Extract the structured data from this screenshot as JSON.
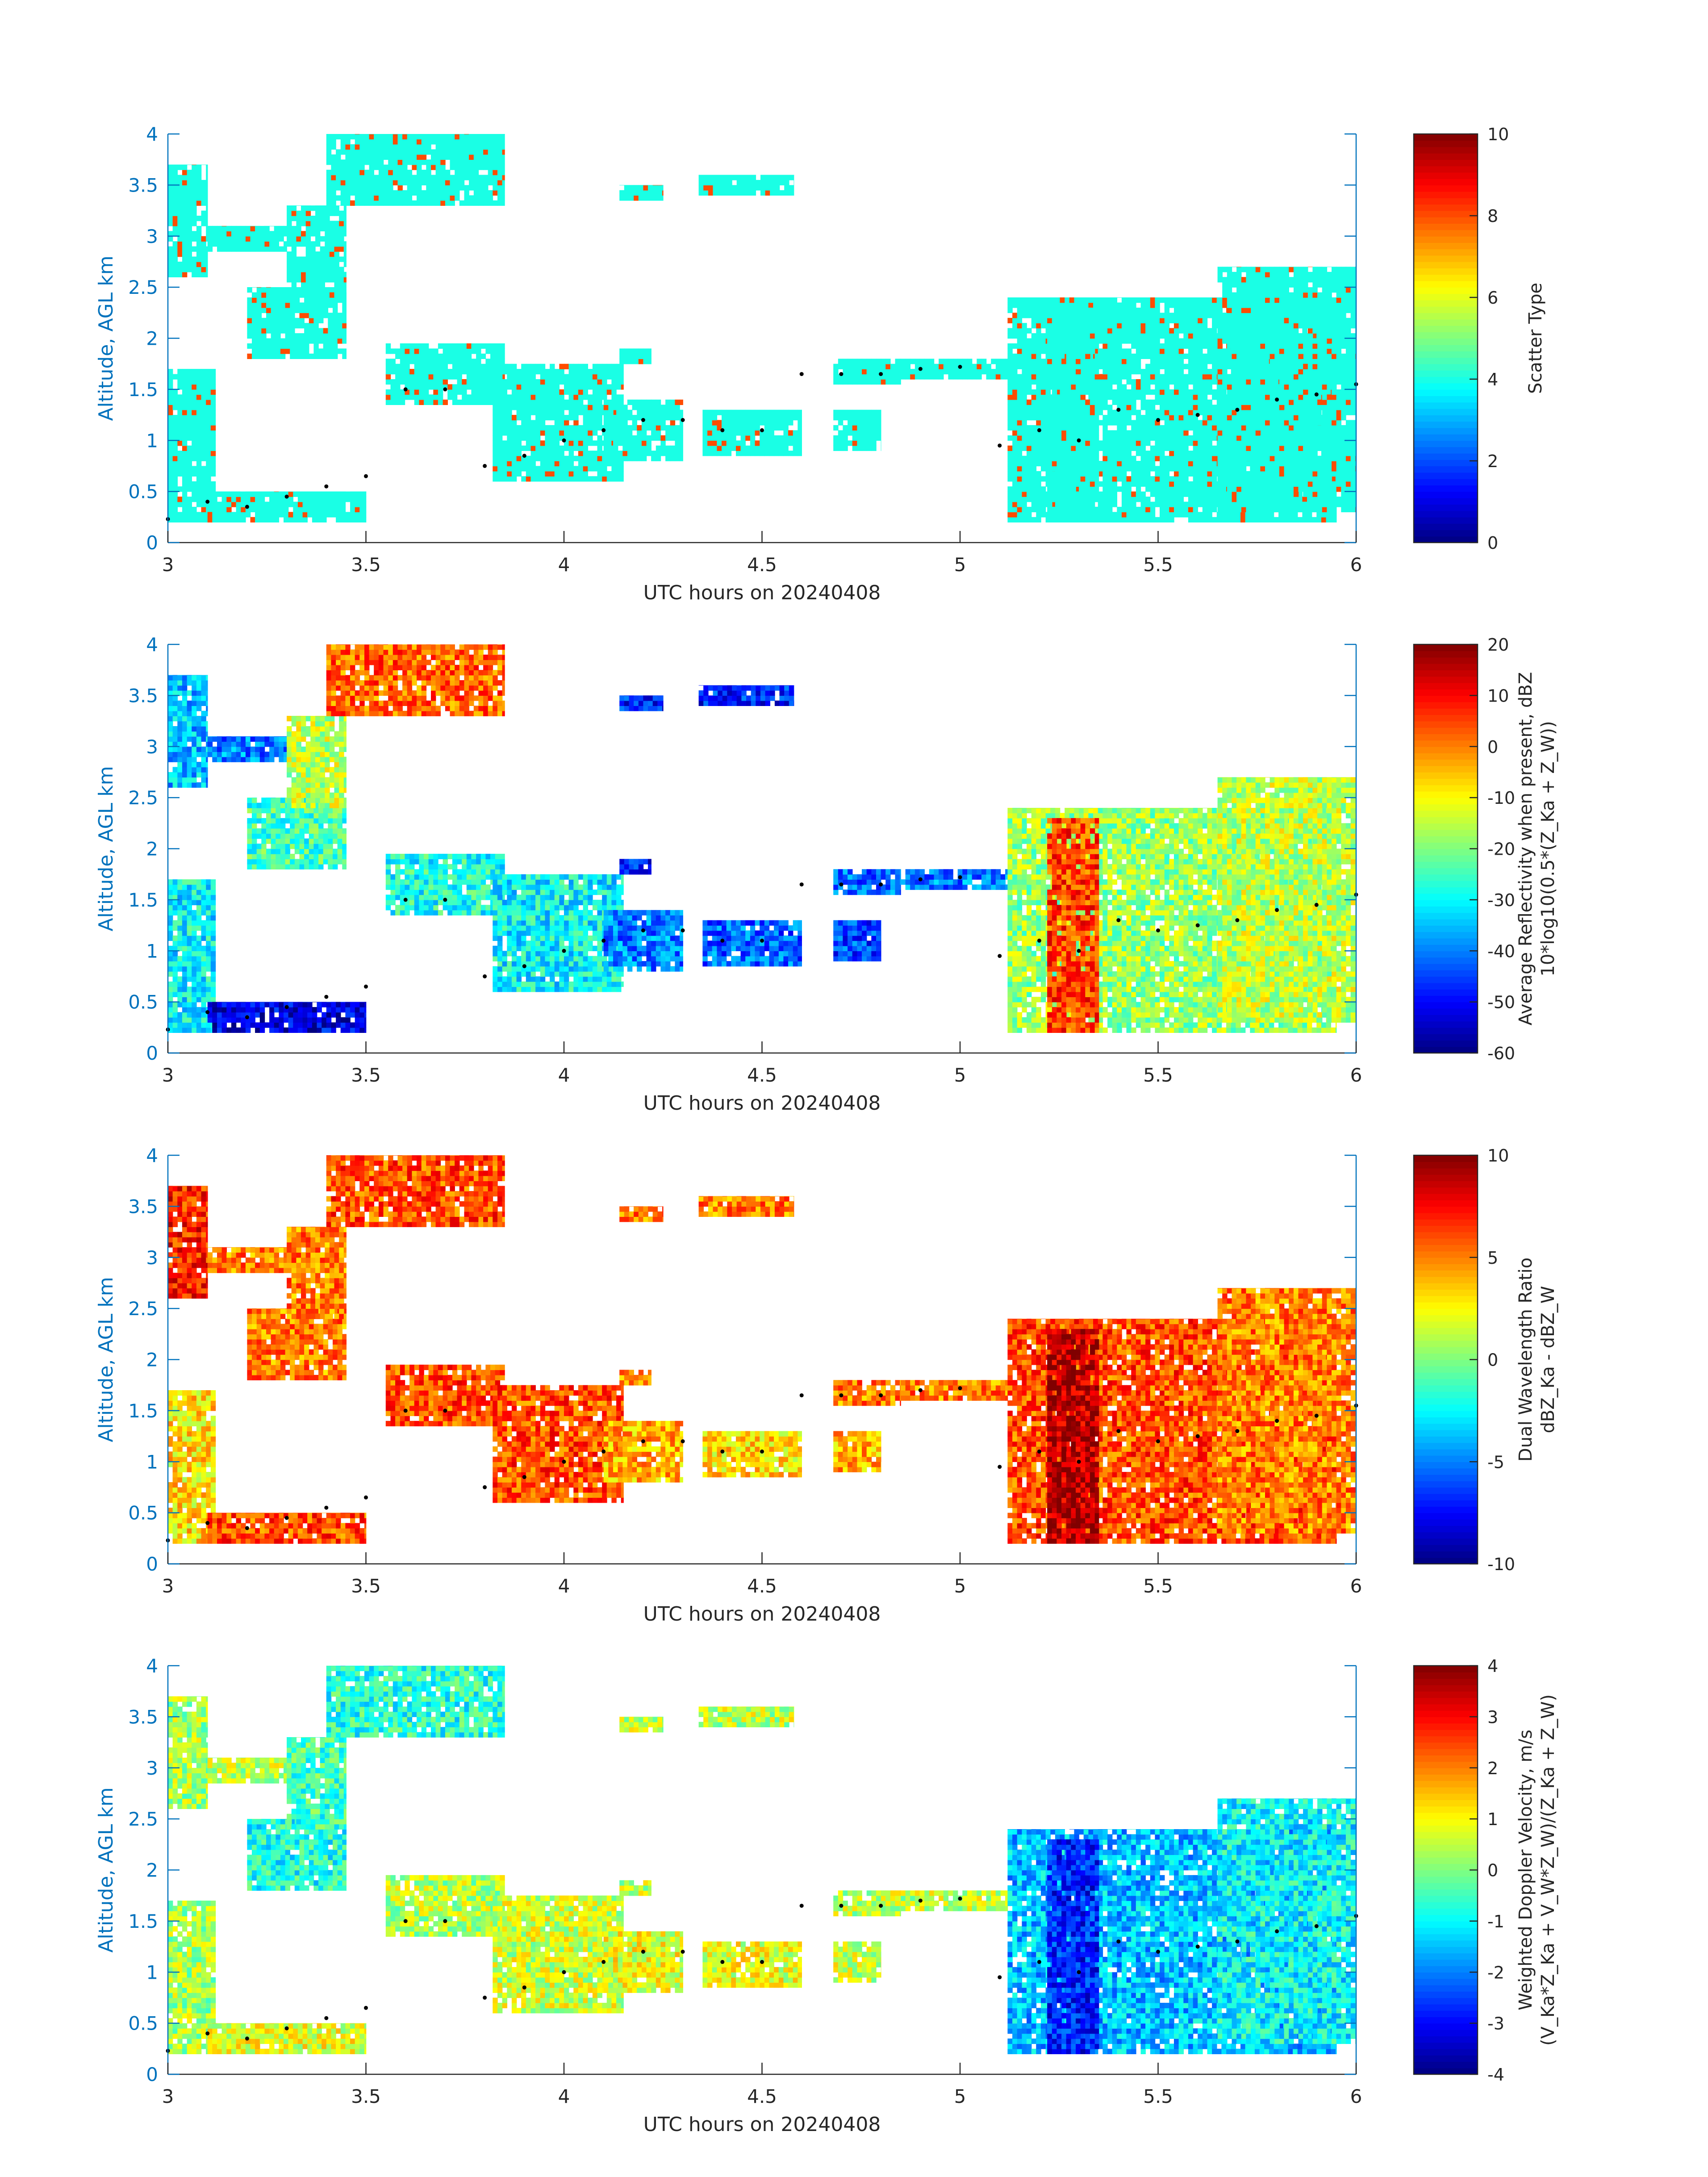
{
  "figure": {
    "panels": [
      {
        "id": "scatter-type",
        "ylabel": "Altitude, AGL km",
        "xlabel": "UTC hours on 20240408",
        "colorbar": {
          "label": [
            "Scatter Type"
          ],
          "min": 0,
          "max": 10,
          "ticks": [
            "0",
            "2",
            "4",
            "6",
            "8",
            "10"
          ]
        }
      },
      {
        "id": "reflectivity",
        "ylabel": "Altitude, AGL km",
        "xlabel": "UTC hours on 20240408",
        "colorbar": {
          "label": [
            "Average Reflectivity when present, dBZ",
            "10*log10(0.5*(Z_Ka + Z_W))"
          ],
          "min": -60,
          "max": 20,
          "ticks": [
            "-60",
            "-50",
            "-40",
            "-30",
            "-20",
            "-10",
            "0",
            "10",
            "20"
          ]
        }
      },
      {
        "id": "dwr",
        "ylabel": "Altitude, AGL km",
        "xlabel": "UTC hours on 20240408",
        "colorbar": {
          "label": [
            "Dual Wavelength Ratio",
            "dBZ_Ka - dBZ_W"
          ],
          "min": -10,
          "max": 10,
          "ticks": [
            "-10",
            "-5",
            "0",
            "5",
            "10"
          ]
        }
      },
      {
        "id": "doppler",
        "ylabel": "Altitude, AGL km",
        "xlabel": "UTC hours on 20240408",
        "colorbar": {
          "label": [
            "Weighted Doppler Velocity, m/s",
            "(V_Ka*Z_Ka + V_W*Z_W)/(Z_Ka + Z_W)"
          ],
          "min": -4,
          "max": 4,
          "ticks": [
            "-4",
            "-3",
            "-2",
            "-1",
            "0",
            "1",
            "2",
            "3",
            "4"
          ]
        }
      }
    ]
  },
  "chart_data": {
    "type": "heatmap",
    "xlim": [
      3,
      6
    ],
    "ylim": [
      0,
      4
    ],
    "xticks": [
      "3",
      "3.5",
      "4",
      "4.5",
      "5",
      "5.5",
      "6"
    ],
    "yticks": [
      "0",
      "0.5",
      "1",
      "1.5",
      "2",
      "2.5",
      "3",
      "3.5",
      "4"
    ],
    "colormap": "jet",
    "echo_regions": [
      {
        "x": [
          3.0,
          3.1
        ],
        "y": [
          2.6,
          3.7
        ],
        "type": 4,
        "dbz": -35,
        "dwr": 7,
        "vel": 0.3
      },
      {
        "x": [
          3.1,
          3.3
        ],
        "y": [
          2.85,
          3.1
        ],
        "type": 4,
        "dbz": -40,
        "dwr": 5,
        "vel": 0.5
      },
      {
        "x": [
          3.2,
          3.45
        ],
        "y": [
          1.8,
          2.5
        ],
        "type": 4,
        "dbz": -25,
        "dwr": 5,
        "vel": -0.8
      },
      {
        "x": [
          3.3,
          3.45
        ],
        "y": [
          2.4,
          3.3
        ],
        "type": 4,
        "dbz": -15,
        "dwr": 5,
        "vel": -0.5
      },
      {
        "x": [
          3.4,
          3.85
        ],
        "y": [
          3.3,
          4.0
        ],
        "type": 4,
        "dbz": 2,
        "dwr": 6,
        "vel": -0.7
      },
      {
        "x": [
          3.0,
          3.12
        ],
        "y": [
          0.2,
          1.7
        ],
        "type": 4,
        "dbz": -30,
        "dwr": 3,
        "vel": 0.3
      },
      {
        "x": [
          3.1,
          3.5
        ],
        "y": [
          0.2,
          0.5
        ],
        "type": 4,
        "dbz": -52,
        "dwr": 6,
        "vel": 0.8
      },
      {
        "x": [
          3.55,
          3.85
        ],
        "y": [
          1.35,
          1.95
        ],
        "type": 4,
        "dbz": -28,
        "dwr": 6,
        "vel": 0.4
      },
      {
        "x": [
          3.82,
          4.15
        ],
        "y": [
          0.6,
          1.75
        ],
        "type": 4,
        "dbz": -30,
        "dwr": 6,
        "vel": 0.6
      },
      {
        "x": [
          4.1,
          4.3
        ],
        "y": [
          0.8,
          1.4
        ],
        "type": 4,
        "dbz": -40,
        "dwr": 4,
        "vel": 0.8
      },
      {
        "x": [
          4.14,
          4.22
        ],
        "y": [
          1.75,
          1.9
        ],
        "type": 4,
        "dbz": -48,
        "dwr": 5,
        "vel": 0.5
      },
      {
        "x": [
          4.14,
          4.25
        ],
        "y": [
          3.35,
          3.5
        ],
        "type": 4,
        "dbz": -48,
        "dwr": 5,
        "vel": 0.5
      },
      {
        "x": [
          4.34,
          4.58
        ],
        "y": [
          3.4,
          3.6
        ],
        "type": 4,
        "dbz": -48,
        "dwr": 5,
        "vel": 0.5
      },
      {
        "x": [
          4.35,
          4.6
        ],
        "y": [
          0.85,
          1.3
        ],
        "type": 4,
        "dbz": -42,
        "dwr": 3,
        "vel": 0.8
      },
      {
        "x": [
          4.68,
          4.85
        ],
        "y": [
          1.55,
          1.8
        ],
        "type": 4,
        "dbz": -42,
        "dwr": 5,
        "vel": 0.5
      },
      {
        "x": [
          4.68,
          4.8
        ],
        "y": [
          0.9,
          1.3
        ],
        "type": 4,
        "dbz": -45,
        "dwr": 4,
        "vel": 0.6
      },
      {
        "x": [
          4.85,
          5.12
        ],
        "y": [
          1.6,
          1.8
        ],
        "type": 4,
        "dbz": -40,
        "dwr": 5,
        "vel": 0.5
      },
      {
        "x": [
          5.12,
          5.95
        ],
        "y": [
          0.2,
          2.4
        ],
        "type": 4,
        "dbz": -18,
        "dwr": 6,
        "vel": -1.5
      },
      {
        "x": [
          5.22,
          5.35
        ],
        "y": [
          0.2,
          2.3
        ],
        "type": 4,
        "dbz": 5,
        "dwr": 9,
        "vel": -2.8
      },
      {
        "x": [
          5.65,
          6.0
        ],
        "y": [
          0.3,
          2.7
        ],
        "type": 4,
        "dbz": -15,
        "dwr": 5,
        "vel": -1.0
      }
    ],
    "melting_layer_x": [
      3.0,
      3.1,
      3.2,
      3.3,
      3.4,
      3.5,
      3.6,
      3.7,
      3.8,
      3.9,
      4.0,
      4.1,
      4.2,
      4.3,
      4.4,
      4.5,
      4.6,
      4.7,
      4.8,
      4.9,
      5.0,
      5.1,
      5.2,
      5.3,
      5.4,
      5.5,
      5.6,
      5.7,
      5.8,
      5.9,
      6.0
    ],
    "melting_layer_y": [
      0.23,
      0.4,
      0.35,
      0.45,
      0.55,
      0.65,
      1.5,
      1.5,
      0.75,
      0.85,
      1.0,
      1.1,
      1.2,
      1.2,
      1.1,
      1.1,
      1.65,
      1.65,
      1.65,
      1.7,
      1.72,
      0.95,
      1.1,
      1.0,
      1.3,
      1.2,
      1.25,
      1.3,
      1.4,
      1.45,
      1.55
    ]
  }
}
